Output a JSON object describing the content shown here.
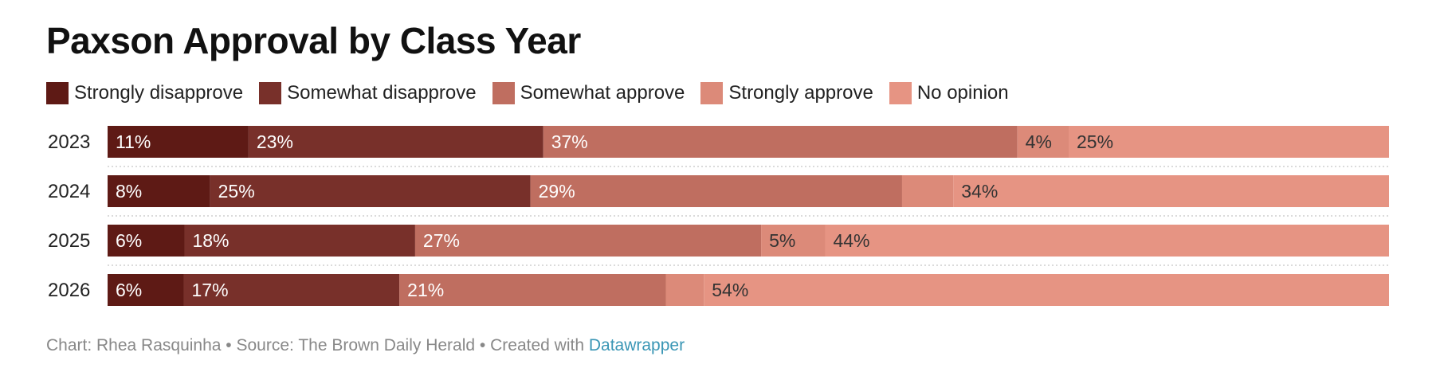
{
  "title": "Paxson Approval by Class Year",
  "footer": {
    "author": "Chart: Rhea Rasquinha",
    "separator": " • ",
    "source": "Source: The Brown Daily Herald",
    "created_with": "Created with ",
    "tool": "Datawrapper"
  },
  "chart_data": {
    "type": "bar",
    "orientation": "horizontal",
    "stacked": true,
    "title": "Paxson Approval by Class Year",
    "categories": [
      "2023",
      "2024",
      "2025",
      "2026"
    ],
    "series": [
      {
        "name": "Strongly disapprove",
        "color": "#5e1a15",
        "values": [
          11,
          8,
          6,
          6
        ],
        "labels": [
          "11%",
          "8%",
          "6%",
          "6%"
        ]
      },
      {
        "name": "Somewhat disapprove",
        "color": "#78302a",
        "values": [
          23,
          25,
          18,
          17
        ],
        "labels": [
          "23%",
          "25%",
          "18%",
          "17%"
        ]
      },
      {
        "name": "Somewhat approve",
        "color": "#bf6e60",
        "values": [
          37,
          29,
          27,
          21
        ],
        "labels": [
          "37%",
          "29%",
          "27%",
          "21%"
        ]
      },
      {
        "name": "Strongly approve",
        "color": "#dc8a79",
        "values": [
          4,
          4,
          5,
          3
        ],
        "labels": [
          "4%",
          "",
          "5%",
          ""
        ]
      },
      {
        "name": "No opinion",
        "color": "#e69483",
        "values": [
          25,
          34,
          44,
          54
        ],
        "labels": [
          "25%",
          "34%",
          "44%",
          "54%"
        ]
      }
    ],
    "label_colors": [
      "#ffffff",
      "#ffffff",
      "#ffffff",
      "#333333",
      "#333333"
    ],
    "xlim": [
      0,
      100
    ],
    "legend_position": "top"
  }
}
